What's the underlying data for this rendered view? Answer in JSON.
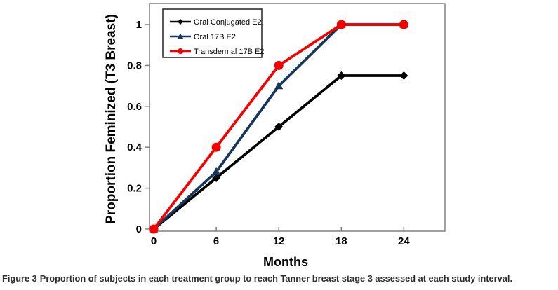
{
  "figure_caption": {
    "label": "Figure 3",
    "text": "Proportion of subjects in each treatment group to reach Tanner breast stage 3 assessed at each study interval."
  },
  "chart_data": {
    "type": "line",
    "title": "",
    "xlabel": "Months",
    "ylabel": "Proportion Feminized (T3 Breast)",
    "x": [
      0,
      6,
      12,
      18,
      24
    ],
    "xtick_labels": [
      "0",
      "6",
      "12",
      "18",
      "24"
    ],
    "ytick_values": [
      0,
      0.2,
      0.4,
      0.6,
      0.8,
      1
    ],
    "ytick_labels": [
      "0",
      "0.2",
      "0.4",
      "0.6",
      "0.8",
      "1"
    ],
    "xlim": [
      0,
      28
    ],
    "ylim": [
      0,
      1.1
    ],
    "grid": false,
    "axis_color": "#808080",
    "legend": {
      "position": "top-left-inside",
      "border_color": "#2f2f2f",
      "fill": "#ffffff"
    },
    "series": [
      {
        "name": "Oral Conjugated E2",
        "marker": "diamond",
        "color": "#000000",
        "values": [
          0,
          0.25,
          0.5,
          0.75,
          0.75
        ]
      },
      {
        "name": "Oral 17B E2",
        "marker": "triangle",
        "color": "#17375D",
        "values": [
          0,
          0.28,
          0.7,
          1,
          1
        ]
      },
      {
        "name": "Transdermal 17B E2",
        "marker": "circle",
        "color": "#F60000",
        "values": [
          0,
          0.4,
          0.8,
          1,
          1
        ]
      }
    ]
  }
}
